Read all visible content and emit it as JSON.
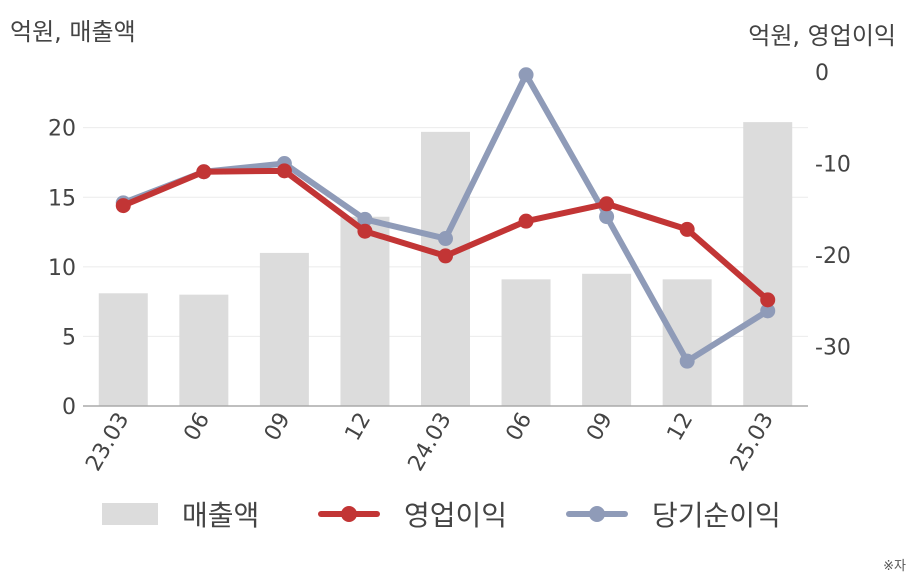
{
  "chart_data": {
    "type": "bar+line",
    "categories": [
      "23.03",
      "06",
      "09",
      "12",
      "24.03",
      "06",
      "09",
      "12",
      "25.03"
    ],
    "y_left": {
      "label": "억원, 매출액",
      "lim": [
        0,
        24
      ],
      "ticks": [
        0,
        5,
        10,
        15,
        20
      ]
    },
    "y_right": {
      "label": "억원, 영업이익",
      "lim": [
        -36.5,
        0
      ],
      "ticks": [
        0,
        -10,
        -20,
        -30
      ]
    },
    "series": [
      {
        "name": "매출액",
        "type": "bar",
        "axis": "left",
        "color": "#dcdcdc",
        "values": [
          8.1,
          8.0,
          11.0,
          13.6,
          19.7,
          9.1,
          9.5,
          9.1,
          20.4
        ]
      },
      {
        "name": "영업이익",
        "type": "line",
        "axis": "right",
        "color": "#c23535",
        "values": [
          -14.6,
          -10.9,
          -10.8,
          -17.4,
          -20.1,
          -16.3,
          -14.4,
          -17.2,
          -24.9
        ]
      },
      {
        "name": "당기순이익",
        "type": "line",
        "axis": "right",
        "color": "#8f9bb8",
        "values": [
          -14.3,
          -10.9,
          -10.0,
          -16.1,
          -18.2,
          -0.3,
          -15.8,
          -31.6,
          -26.1
        ]
      }
    ],
    "grid": true,
    "legend": "bottom"
  },
  "note": "※자"
}
